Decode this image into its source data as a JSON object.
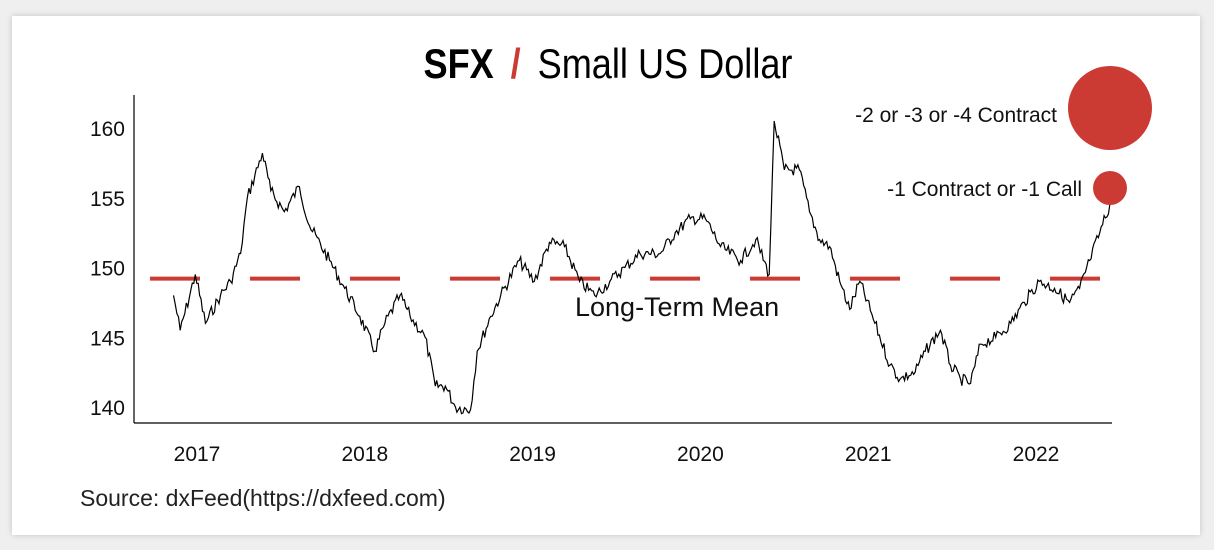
{
  "chart_data": {
    "type": "line",
    "title": {
      "ticker": "SFX",
      "separator": "/",
      "name": "Small US Dollar"
    },
    "ylim": [
      138.8,
      162.5
    ],
    "yticks": [
      140,
      145,
      150,
      155,
      160
    ],
    "xlim": [
      2016.73,
      2022.55
    ],
    "xticks": [
      2017,
      2018,
      2019,
      2020,
      2021,
      2022
    ],
    "grid": false,
    "mean": {
      "value": 149.2,
      "label": "Long-Term Mean",
      "color": "#cc3b33"
    },
    "legend": [
      {
        "label": "-2 or -3 or -4 Contract",
        "size": "large",
        "color": "#cc3b33"
      },
      {
        "label": "-1 Contract or -1 Call",
        "size": "small",
        "color": "#cc3b33"
      }
    ],
    "series": [
      {
        "color": "#000000",
        "x": [
          2016.86,
          2016.9,
          2016.99,
          2017.05,
          2017.14,
          2017.2,
          2017.26,
          2017.3,
          2017.39,
          2017.44,
          2017.52,
          2017.61,
          2017.67,
          2017.79,
          2017.88,
          2017.97,
          2018.06,
          2018.12,
          2018.21,
          2018.27,
          2018.36,
          2018.42,
          2018.48,
          2018.54,
          2018.63,
          2018.67,
          2018.75,
          2018.81,
          2018.92,
          2019.01,
          2019.1,
          2019.19,
          2019.28,
          2019.37,
          2019.46,
          2019.55,
          2019.64,
          2019.76,
          2019.85,
          2019.94,
          2020.03,
          2020.12,
          2020.24,
          2020.33,
          2020.41,
          2020.44,
          2020.5,
          2020.59,
          2020.65,
          2020.71,
          2020.77,
          2020.83,
          2020.89,
          2020.95,
          2021.04,
          2021.13,
          2021.19,
          2021.28,
          2021.34,
          2021.43,
          2021.49,
          2021.55,
          2021.61,
          2021.67,
          2021.76,
          2021.85,
          2021.93,
          2022.02,
          2022.11,
          2022.2,
          2022.26,
          2022.32,
          2022.38,
          2022.44
        ],
        "y": [
          148,
          145.5,
          149.5,
          146,
          148,
          149,
          151,
          155,
          158.2,
          155.5,
          154,
          155.8,
          153,
          150.5,
          148.5,
          146.5,
          144,
          146,
          148,
          146.5,
          145,
          141.5,
          141.5,
          140,
          139.8,
          144,
          146.5,
          148,
          150.5,
          149,
          151.8,
          151.5,
          149,
          148,
          149,
          150,
          151,
          151,
          152.5,
          153.5,
          153.5,
          151.5,
          150.5,
          152,
          149.5,
          160.5,
          157,
          157,
          154,
          152,
          151.5,
          149,
          147,
          149,
          146,
          143,
          142,
          142.5,
          144,
          145.5,
          143,
          142,
          141.7,
          144.5,
          145,
          146,
          147.5,
          149,
          148.5,
          147.5,
          148.5,
          150.5,
          152.5,
          154.5
        ]
      }
    ]
  },
  "footer": {
    "source": "Source: dxFeed(https://dxfeed.com)"
  }
}
